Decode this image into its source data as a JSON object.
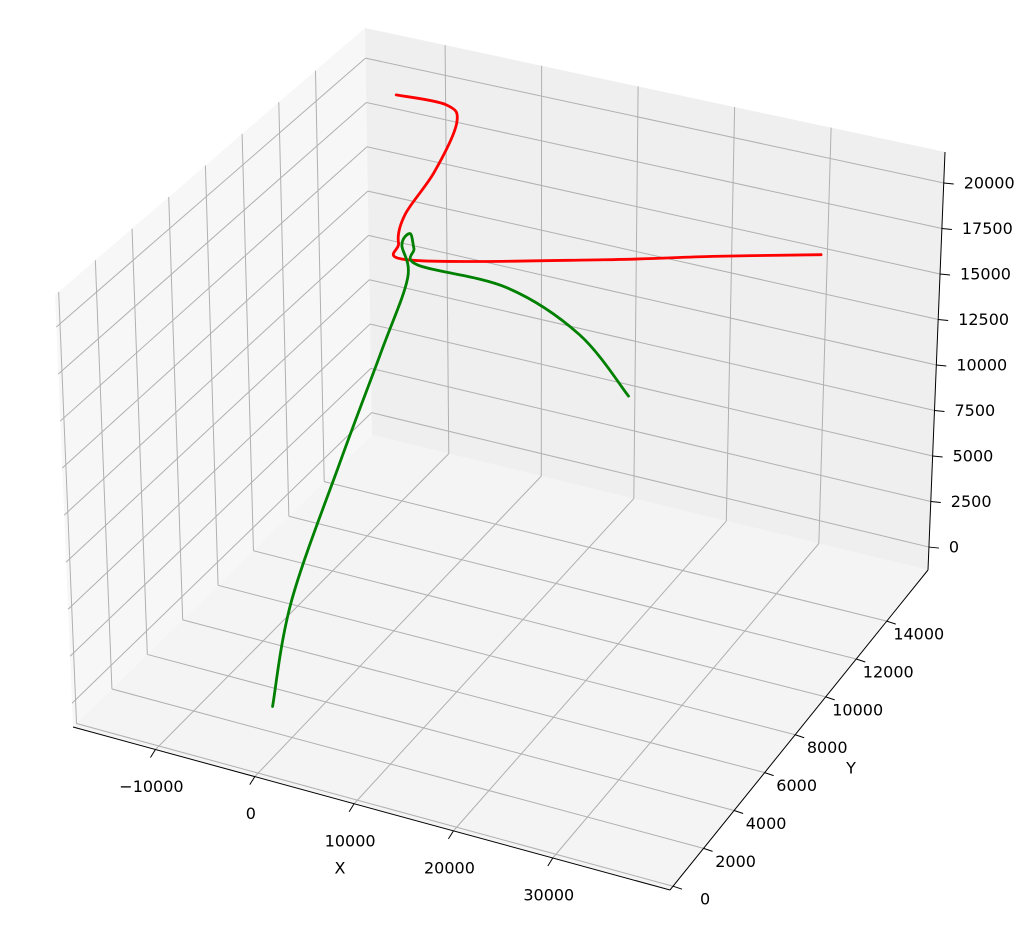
{
  "chart_data": {
    "type": "line3d",
    "xlabel": "X",
    "ylabel": "Y",
    "xlim": [
      -18300,
      41800
    ],
    "ylim": [
      -200,
      16700
    ],
    "zlim": [
      -1260,
      21700
    ],
    "xticks": [
      {
        "value": -10000,
        "label": "−10000"
      },
      0,
      10000,
      20000,
      30000
    ],
    "yticks": [
      0,
      2000,
      4000,
      6000,
      8000,
      10000,
      12000,
      14000
    ],
    "zticks": [
      0,
      2500,
      5000,
      7500,
      10000,
      12500,
      15000,
      17500,
      20000
    ],
    "grid": true,
    "series": [
      {
        "color": "red",
        "x": [
          -10600,
          -6400,
          -5500,
          -6200,
          -7600,
          -7200,
          -5000,
          11700,
          21400,
          31300
        ],
        "y": [
          14300,
          14800,
          14900,
          14000,
          13100,
          12500,
          12100,
          13800,
          14700,
          15500
        ],
        "z": [
          21000,
          20500,
          19500,
          17500,
          15800,
          14800,
          14500,
          15000,
          15500,
          16000
        ]
      },
      {
        "color": "green",
        "x": [
          -2100,
          -4400,
          -6400,
          -6900,
          -6300,
          -7600,
          -7100,
          -5800,
          -4500,
          3600,
          10600,
          16100
        ],
        "y": [
          2100,
          4600,
          8600,
          11300,
          12500,
          12900,
          13100,
          12600,
          12100,
          12700,
          13000,
          12800
        ],
        "z": [
          0,
          3000,
          6500,
          10000,
          13000,
          14300,
          14800,
          14600,
          14300,
          13500,
          11500,
          9000
        ]
      }
    ]
  }
}
